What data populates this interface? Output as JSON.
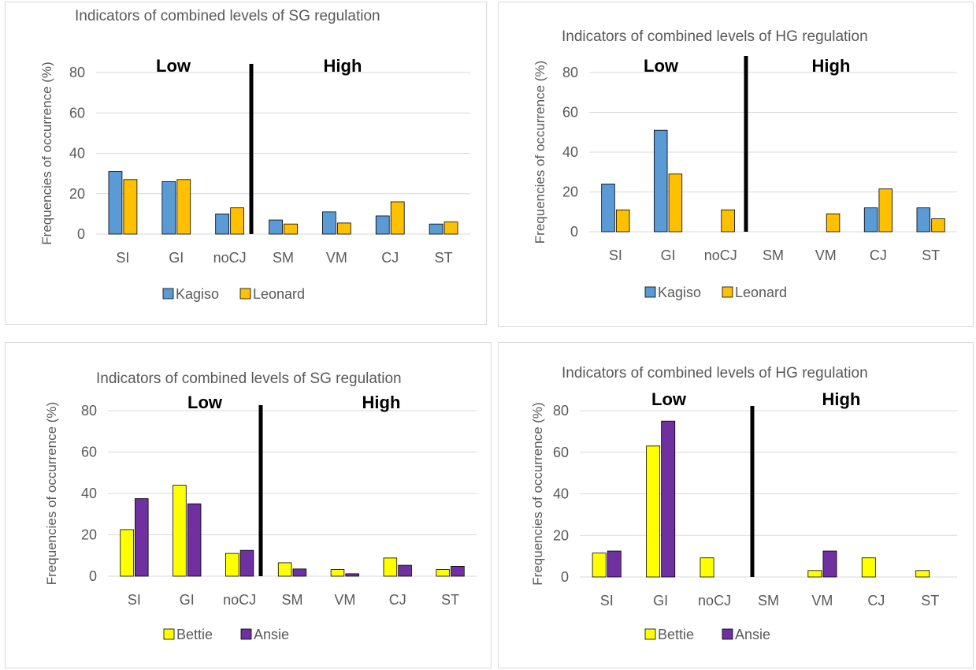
{
  "chart_data": [
    {
      "type": "bar",
      "title": "Indicators of combined levels of SG regulation",
      "ylabel": "Frequencies of occurrence (%)",
      "xlabel": "",
      "ylim": [
        0,
        80
      ],
      "yticks": [
        0,
        20,
        40,
        60,
        80
      ],
      "grid": true,
      "legend_position": "bottom",
      "categories": [
        "SI",
        "GI",
        "noCJ",
        "SM",
        "VM",
        "CJ",
        "ST"
      ],
      "region_labels": [
        "Low",
        "High"
      ],
      "series": [
        {
          "name": "Kagiso",
          "color": "#5b9bd5",
          "values": [
            31,
            26,
            10,
            7,
            11,
            9,
            5
          ]
        },
        {
          "name": "Leonard",
          "color": "#ffc000",
          "values": [
            27,
            27,
            13,
            5,
            5.5,
            16,
            6
          ]
        }
      ]
    },
    {
      "type": "bar",
      "title": "Indicators of combined levels of HG regulation",
      "ylabel": "Frequencies of occurrence (%)",
      "xlabel": "",
      "ylim": [
        0,
        80
      ],
      "yticks": [
        0,
        20,
        40,
        60,
        80
      ],
      "grid": true,
      "legend_position": "bottom",
      "categories": [
        "SI",
        "GI",
        "noCJ",
        "SM",
        "VM",
        "CJ",
        "ST"
      ],
      "region_labels": [
        "Low",
        "High"
      ],
      "series": [
        {
          "name": "Kagiso",
          "color": "#5b9bd5",
          "values": [
            24,
            51,
            0,
            0,
            0,
            12,
            12
          ]
        },
        {
          "name": "Leonard",
          "color": "#ffc000",
          "values": [
            11,
            29,
            11,
            0,
            9,
            21.5,
            6.5
          ]
        }
      ]
    },
    {
      "type": "bar",
      "title": "Indicators of combined levels of SG regulation",
      "ylabel": "Frequencies of occurrence (%)",
      "xlabel": "",
      "ylim": [
        0,
        80
      ],
      "yticks": [
        0,
        20,
        40,
        60,
        80
      ],
      "grid": true,
      "legend_position": "bottom",
      "categories": [
        "SI",
        "GI",
        "noCJ",
        "SM",
        "VM",
        "CJ",
        "ST"
      ],
      "region_labels": [
        "Low",
        "High"
      ],
      "series": [
        {
          "name": "Bettie",
          "color": "#ffff00",
          "values": [
            22.5,
            44,
            11,
            6.5,
            3.2,
            8.8,
            3.2
          ]
        },
        {
          "name": "Ansie",
          "color": "#7030a0",
          "values": [
            37.5,
            35,
            12.5,
            3.5,
            1.2,
            5.3,
            4.8
          ]
        }
      ]
    },
    {
      "type": "bar",
      "title": "Indicators of combined levels of HG regulation",
      "ylabel": "Frequencies of occurrence (%)",
      "xlabel": "",
      "ylim": [
        0,
        80
      ],
      "yticks": [
        0,
        20,
        40,
        60,
        80
      ],
      "grid": true,
      "legend_position": "bottom",
      "categories": [
        "SI",
        "GI",
        "noCJ",
        "SM",
        "VM",
        "CJ",
        "ST"
      ],
      "region_labels": [
        "Low",
        "High"
      ],
      "series": [
        {
          "name": "Bettie",
          "color": "#ffff00",
          "values": [
            11.5,
            63,
            9.2,
            0,
            3.1,
            9.2,
            3.1
          ]
        },
        {
          "name": "Ansie",
          "color": "#7030a0",
          "values": [
            12.5,
            75,
            0,
            0,
            12.5,
            0,
            0
          ]
        }
      ]
    }
  ]
}
